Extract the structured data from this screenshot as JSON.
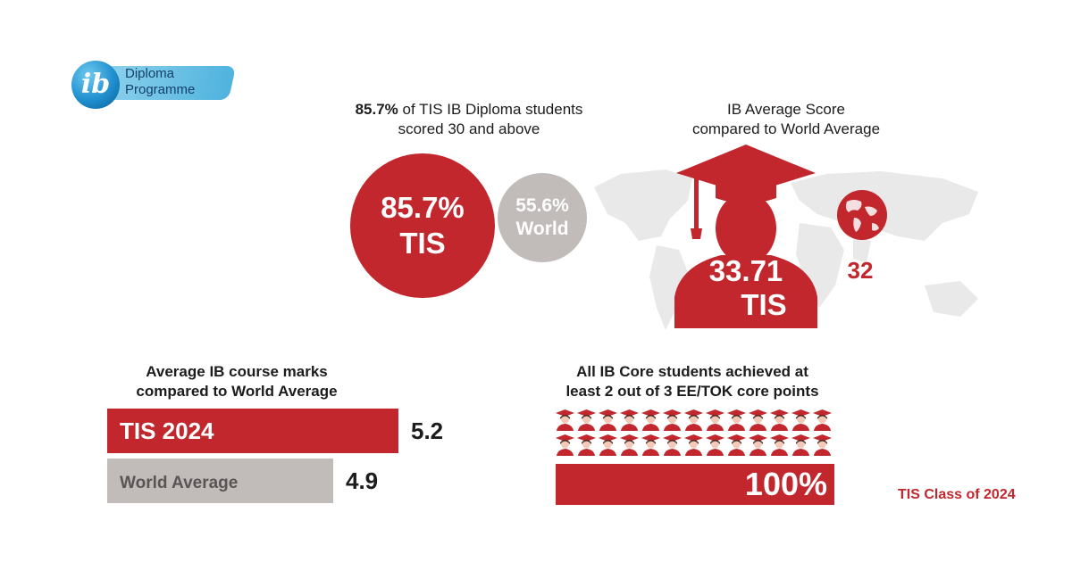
{
  "logo": {
    "line1": "Diploma",
    "line2": "Programme",
    "mark": "ib"
  },
  "pct_caption": {
    "highlight": "85.7%",
    "rest": " of TIS  IB Diploma students",
    "line2": "scored 30 and above"
  },
  "avg_caption": {
    "line1": "IB Average Score",
    "line2": "compared to World Average"
  },
  "bars_title": {
    "line1": "Average IB course marks",
    "line2": "compared to World Average"
  },
  "core_title": {
    "line1": "All IB Core students achieved at",
    "line2": "least 2 out of 3 EE/TOK core points"
  },
  "class_label": "TIS Class of 2024",
  "icons": [
    "graduate-icon",
    "globe-icon",
    "world-map-icon",
    "student-icon"
  ],
  "colors": {
    "red": "#c1272d",
    "grey": "#c1bcba",
    "map": "#e9e9e9",
    "logo_blue": "#1f8fcf"
  },
  "chart_data": [
    {
      "type": "bubble",
      "labels": [
        "TIS",
        "World"
      ],
      "values": [
        85.7,
        55.6
      ],
      "value_text": [
        "85.7%",
        "55.6%"
      ]
    },
    {
      "type": "pictogram",
      "labels": [
        "TIS",
        "World"
      ],
      "values": [
        33.71,
        32
      ],
      "value_text": [
        "33.71",
        "32"
      ]
    },
    {
      "type": "bar",
      "orientation": "horizontal",
      "categories": [
        "TIS 2024",
        "World Average"
      ],
      "values": [
        5.2,
        4.9
      ],
      "value_text": [
        "5.2",
        "4.9"
      ]
    },
    {
      "type": "pictogram",
      "icon_count": 26,
      "rows": 2,
      "values": [
        100
      ],
      "value_text": [
        "100%"
      ]
    }
  ]
}
